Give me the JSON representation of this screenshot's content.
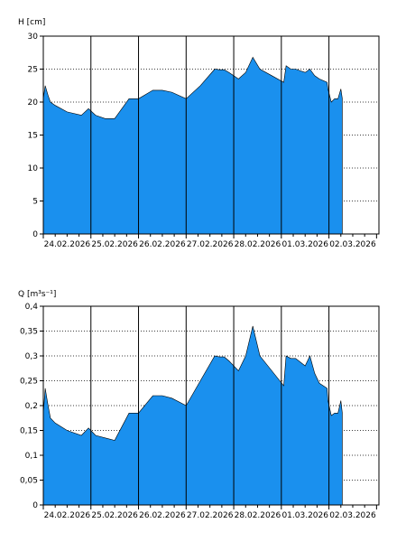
{
  "colors": {
    "fill": "#1a90ee",
    "axis": "#000000",
    "grid": "#000000",
    "background": "#ffffff"
  },
  "chart_data": [
    {
      "type": "area",
      "ylabel": "H [cm]",
      "ylim": [
        0,
        30
      ],
      "yticks": [
        0,
        5,
        10,
        15,
        20,
        25,
        30
      ],
      "ytick_labels": [
        "0",
        "5",
        "10",
        "15",
        "20",
        "25",
        "30"
      ],
      "x_day_range": [
        0.0,
        7.05
      ],
      "xtick_labels": [
        "24.02.2026",
        "25.02.2026",
        "26.02.2026",
        "27.02.2026",
        "28.02.2026",
        "01.03.2026",
        "02.03.2026"
      ],
      "grid": "vertical solid lines at midnight, horizontal dotted lines",
      "series": [
        {
          "x": [
            0.0,
            0.04,
            0.1,
            0.15,
            0.25,
            0.5,
            0.8,
            0.95,
            1.1,
            1.3,
            1.5,
            1.8,
            2.0,
            2.3,
            2.5,
            2.7,
            3.0,
            3.3,
            3.6,
            3.7,
            3.8,
            3.9,
            4.1,
            4.25,
            4.4,
            4.55,
            4.8,
            5.05,
            5.1,
            5.2,
            5.3,
            5.5,
            5.6,
            5.7,
            5.8,
            5.96,
            5.98,
            6.05,
            6.12,
            6.19,
            6.25,
            6.28
          ],
          "y": [
            20.5,
            22.5,
            21.0,
            20.0,
            19.5,
            18.5,
            18.0,
            19.0,
            18.0,
            17.5,
            17.5,
            20.5,
            20.5,
            21.8,
            21.8,
            21.5,
            20.5,
            22.5,
            25.0,
            24.9,
            24.9,
            24.5,
            23.5,
            24.5,
            26.8,
            25.0,
            24.0,
            23.0,
            25.5,
            25.0,
            25.0,
            24.5,
            25.0,
            24.0,
            23.5,
            23.0,
            22.0,
            20.0,
            20.5,
            20.5,
            22.0,
            20.5
          ]
        }
      ]
    },
    {
      "type": "area",
      "ylabel": "Q [m³s⁻¹]",
      "ylim": [
        0,
        0.4
      ],
      "yticks": [
        0,
        0.05,
        0.1,
        0.15,
        0.2,
        0.25,
        0.3,
        0.35,
        0.4
      ],
      "ytick_labels": [
        "0",
        "0,05",
        "0,1",
        "0,15",
        "0,2",
        "0,25",
        "0,3",
        "0,35",
        "0,4"
      ],
      "x_day_range": [
        0.0,
        7.05
      ],
      "xtick_labels": [
        "24.02.2026",
        "25.02.2026",
        "26.02.2026",
        "27.02.2026",
        "28.02.2026",
        "01.03.2026",
        "02.03.2026"
      ],
      "grid": "vertical solid lines at midnight, horizontal dotted lines",
      "series": [
        {
          "x": [
            0.0,
            0.04,
            0.1,
            0.15,
            0.25,
            0.5,
            0.8,
            0.95,
            1.1,
            1.3,
            1.5,
            1.8,
            2.0,
            2.3,
            2.5,
            2.7,
            3.0,
            3.3,
            3.6,
            3.7,
            3.8,
            3.9,
            4.1,
            4.25,
            4.4,
            4.55,
            4.8,
            5.05,
            5.1,
            5.2,
            5.3,
            5.5,
            5.6,
            5.7,
            5.8,
            5.96,
            5.98,
            6.05,
            6.12,
            6.19,
            6.25,
            6.28
          ],
          "y": [
            0.185,
            0.235,
            0.2,
            0.175,
            0.165,
            0.15,
            0.14,
            0.155,
            0.14,
            0.135,
            0.13,
            0.185,
            0.185,
            0.22,
            0.22,
            0.215,
            0.2,
            0.25,
            0.3,
            0.298,
            0.298,
            0.29,
            0.27,
            0.3,
            0.36,
            0.3,
            0.27,
            0.24,
            0.3,
            0.295,
            0.295,
            0.28,
            0.3,
            0.265,
            0.245,
            0.235,
            0.21,
            0.18,
            0.185,
            0.185,
            0.21,
            0.185
          ]
        }
      ]
    }
  ]
}
